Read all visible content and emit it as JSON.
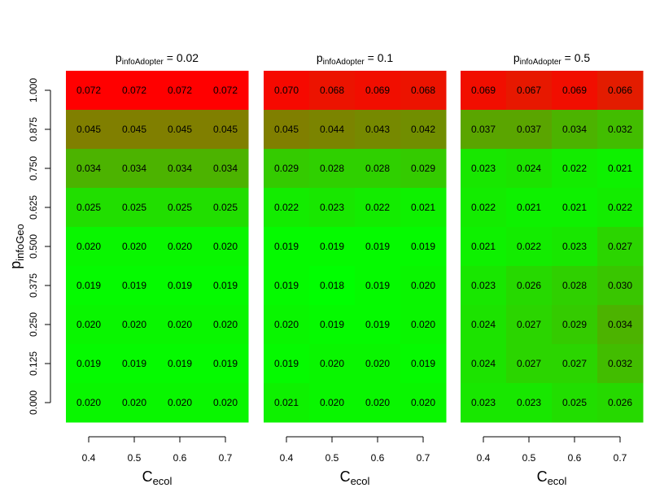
{
  "chart_data": {
    "type": "heatmap",
    "y_axis": {
      "label_main": "p",
      "label_sub": "infoGeo",
      "ticks": [
        "0.000",
        "0.125",
        "0.250",
        "0.375",
        "0.500",
        "0.625",
        "0.750",
        "0.875",
        "1.000"
      ]
    },
    "x_axis": {
      "label_main": "C",
      "label_sub": "ecol",
      "ticks": [
        "0.4",
        "0.5",
        "0.6",
        "0.7"
      ]
    },
    "color_scale": {
      "low": "#00ff00",
      "high": "#ff0000"
    },
    "panels": [
      {
        "title_main": "p",
        "title_sub": "infoAdopter",
        "title_eq": " = 0.02",
        "rows": [
          [
            "0.072",
            "0.072",
            "0.072",
            "0.072"
          ],
          [
            "0.045",
            "0.045",
            "0.045",
            "0.045"
          ],
          [
            "0.034",
            "0.034",
            "0.034",
            "0.034"
          ],
          [
            "0.025",
            "0.025",
            "0.025",
            "0.025"
          ],
          [
            "0.020",
            "0.020",
            "0.020",
            "0.020"
          ],
          [
            "0.019",
            "0.019",
            "0.019",
            "0.019"
          ],
          [
            "0.020",
            "0.020",
            "0.020",
            "0.020"
          ],
          [
            "0.019",
            "0.019",
            "0.019",
            "0.019"
          ],
          [
            "0.020",
            "0.020",
            "0.020",
            "0.020"
          ]
        ]
      },
      {
        "title_main": "p",
        "title_sub": "infoAdopter",
        "title_eq": " = 0.1",
        "rows": [
          [
            "0.070",
            "0.068",
            "0.069",
            "0.068"
          ],
          [
            "0.045",
            "0.044",
            "0.043",
            "0.042"
          ],
          [
            "0.029",
            "0.028",
            "0.028",
            "0.029"
          ],
          [
            "0.022",
            "0.023",
            "0.022",
            "0.021"
          ],
          [
            "0.019",
            "0.019",
            "0.019",
            "0.019"
          ],
          [
            "0.019",
            "0.018",
            "0.019",
            "0.020"
          ],
          [
            "0.020",
            "0.019",
            "0.019",
            "0.020"
          ],
          [
            "0.019",
            "0.020",
            "0.020",
            "0.019"
          ],
          [
            "0.021",
            "0.020",
            "0.020",
            "0.020"
          ]
        ]
      },
      {
        "title_main": "p",
        "title_sub": "infoAdopter",
        "title_eq": " = 0.5",
        "rows": [
          [
            "0.069",
            "0.067",
            "0.069",
            "0.066"
          ],
          [
            "0.037",
            "0.037",
            "0.034",
            "0.032"
          ],
          [
            "0.023",
            "0.024",
            "0.022",
            "0.021"
          ],
          [
            "0.022",
            "0.021",
            "0.021",
            "0.022"
          ],
          [
            "0.021",
            "0.022",
            "0.023",
            "0.027"
          ],
          [
            "0.023",
            "0.026",
            "0.028",
            "0.030"
          ],
          [
            "0.024",
            "0.027",
            "0.029",
            "0.034"
          ],
          [
            "0.024",
            "0.027",
            "0.027",
            "0.032"
          ],
          [
            "0.023",
            "0.023",
            "0.025",
            "0.026"
          ]
        ]
      }
    ]
  }
}
